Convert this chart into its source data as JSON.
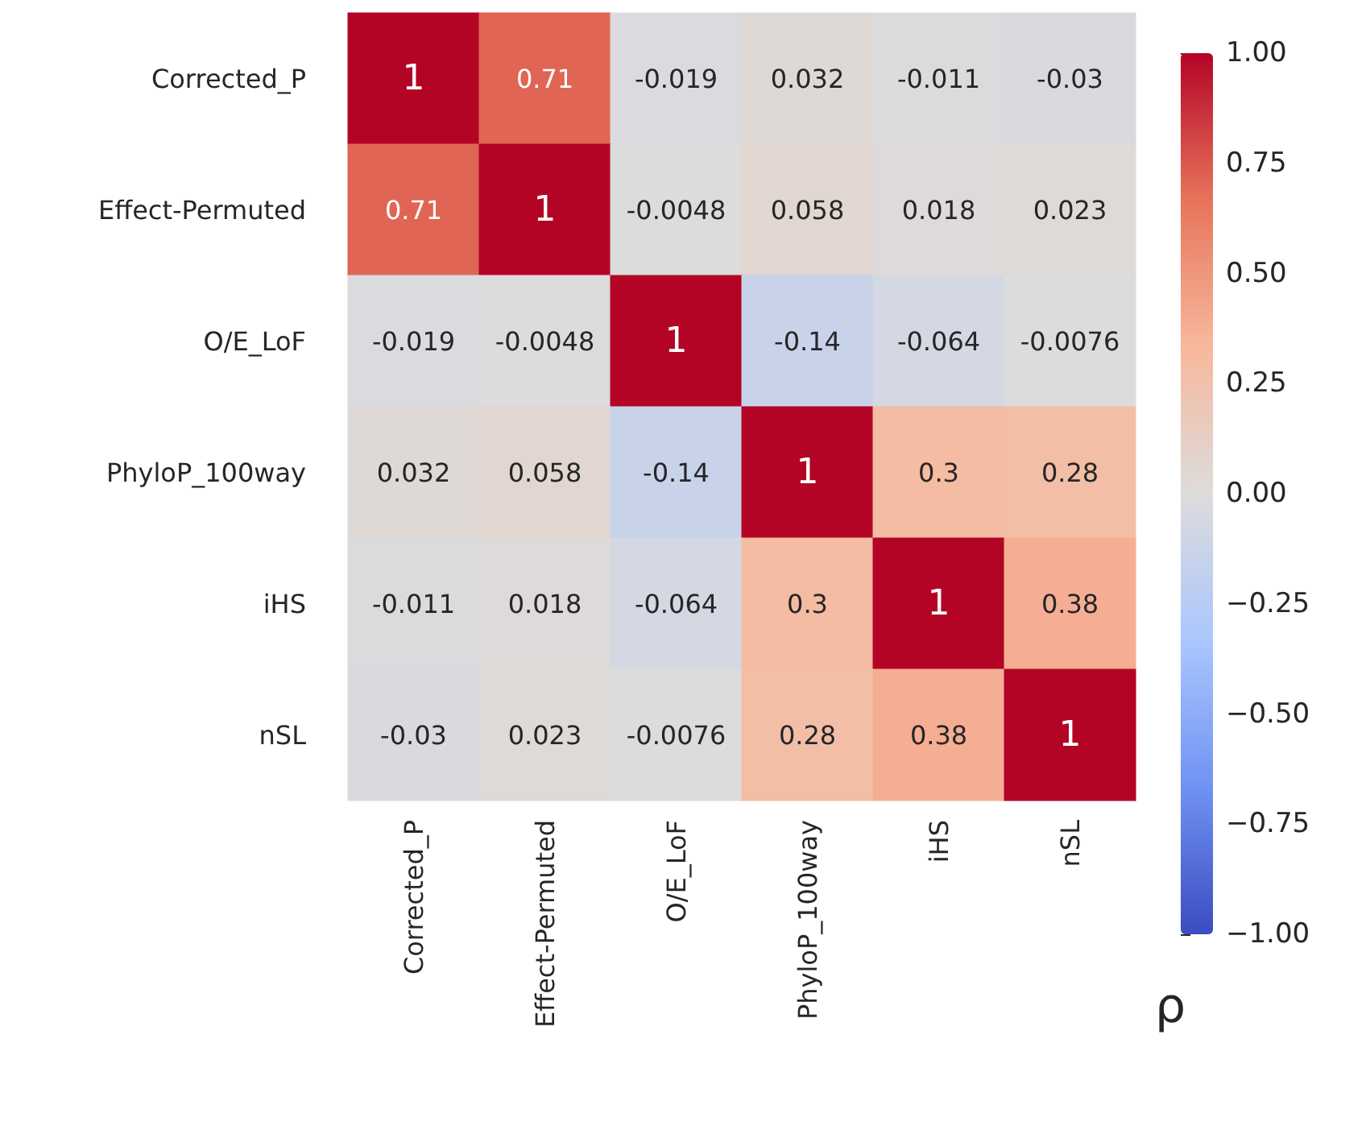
{
  "chart_data": {
    "type": "heatmap",
    "categories": [
      "Corrected_P",
      "Effect-Permuted",
      "O/E_LoF",
      "PhyloP_100way",
      "iHS",
      "nSL"
    ],
    "y_categories": [
      "Corrected_P",
      "Effect-Permuted",
      "O/E_LoF",
      "PhyloP_100way",
      "iHS",
      "nSL"
    ],
    "cells": [
      [
        1,
        0.71,
        -0.019,
        0.032,
        -0.011,
        -0.03
      ],
      [
        0.71,
        1,
        -0.0048,
        0.058,
        0.018,
        0.023
      ],
      [
        -0.019,
        -0.0048,
        1,
        -0.14,
        -0.064,
        -0.0076
      ],
      [
        0.032,
        0.058,
        -0.14,
        1,
        0.3,
        0.28
      ],
      [
        -0.011,
        0.018,
        -0.064,
        0.3,
        1,
        0.38
      ],
      [
        -0.03,
        0.023,
        -0.0076,
        0.28,
        0.38,
        1
      ]
    ],
    "clim": [
      -1,
      1
    ],
    "cticks": [
      {
        "value": -1,
        "label": "−1.00"
      },
      {
        "value": -0.75,
        "label": "−0.75"
      },
      {
        "value": -0.5,
        "label": "−0.50"
      },
      {
        "value": -0.25,
        "label": "−0.25"
      },
      {
        "value": 0,
        "label": "0.00"
      },
      {
        "value": 0.25,
        "label": "0.25"
      },
      {
        "value": 0.5,
        "label": "0.50"
      },
      {
        "value": 0.75,
        "label": "0.75"
      },
      {
        "value": 1,
        "label": "1.00"
      }
    ],
    "clabel": "ρ",
    "data_labels": true
  }
}
